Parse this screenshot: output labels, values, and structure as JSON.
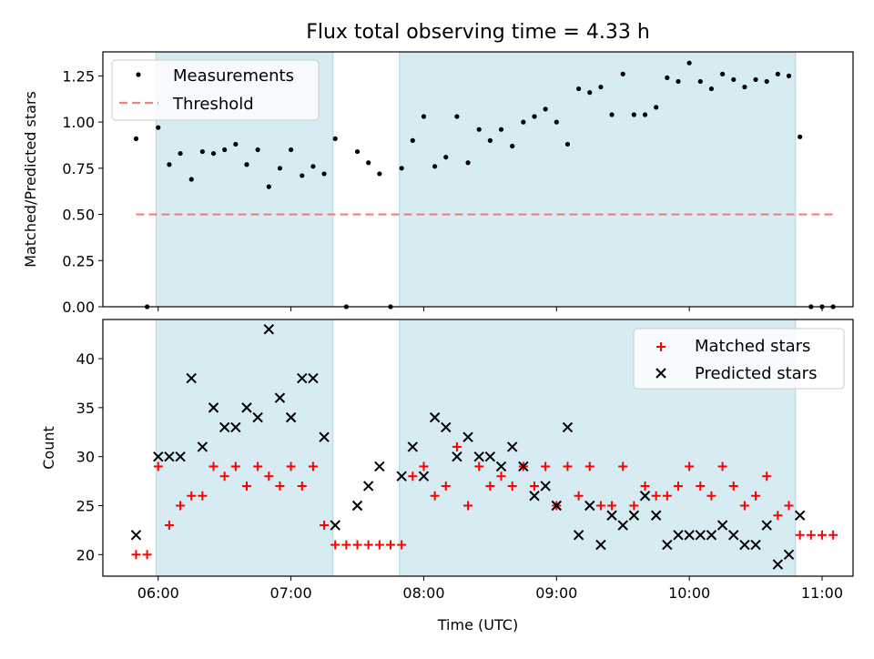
{
  "chart_data": [
    {
      "type": "scatter",
      "title": "Flux total observing time = 4.33 h",
      "xlabel": "",
      "ylabel": "Matched/Predicted stars",
      "ylim": [
        0,
        1.38
      ],
      "yticks": [
        "0.00",
        "0.25",
        "0.50",
        "0.75",
        "1.00",
        "1.25"
      ],
      "ytick_values": [
        0,
        0.25,
        0.5,
        0.75,
        1.0,
        1.25
      ],
      "legend_position": "top-left",
      "shaded_intervals": [
        [
          "05:59",
          "07:19"
        ],
        [
          "07:49",
          "10:48"
        ]
      ],
      "series": [
        {
          "name": "Measurements",
          "color": "#000000",
          "marker": "dot",
          "x": [
            "05:50",
            "05:55",
            "06:00",
            "06:05",
            "06:10",
            "06:15",
            "06:20",
            "06:25",
            "06:30",
            "06:35",
            "06:40",
            "06:45",
            "06:50",
            "06:55",
            "07:00",
            "07:05",
            "07:10",
            "07:15",
            "07:20",
            "07:25",
            "07:30",
            "07:35",
            "07:40",
            "07:45",
            "07:50",
            "07:55",
            "08:00",
            "08:05",
            "08:10",
            "08:15",
            "08:20",
            "08:25",
            "08:30",
            "08:35",
            "08:40",
            "08:45",
            "08:50",
            "08:55",
            "09:00",
            "09:05",
            "09:10",
            "09:15",
            "09:20",
            "09:25",
            "09:30",
            "09:35",
            "09:40",
            "09:45",
            "09:50",
            "09:55",
            "10:00",
            "10:05",
            "10:10",
            "10:15",
            "10:20",
            "10:25",
            "10:30",
            "10:35",
            "10:40",
            "10:45",
            "10:50",
            "10:55",
            "11:00",
            "11:05"
          ],
          "values": [
            0.91,
            0.0,
            0.97,
            0.77,
            0.83,
            0.69,
            0.84,
            0.83,
            0.85,
            0.88,
            0.77,
            0.85,
            0.65,
            0.75,
            0.85,
            0.71,
            0.76,
            0.72,
            0.91,
            0.0,
            0.84,
            0.78,
            0.72,
            0.0,
            0.75,
            0.9,
            1.03,
            0.76,
            0.81,
            1.03,
            0.78,
            0.96,
            0.9,
            0.96,
            0.87,
            1.0,
            1.03,
            1.07,
            1.0,
            0.88,
            1.18,
            1.16,
            1.19,
            1.04,
            1.26,
            1.04,
            1.04,
            1.08,
            1.24,
            1.22,
            1.32,
            1.22,
            1.18,
            1.26,
            1.23,
            1.19,
            1.23,
            1.22,
            1.26,
            1.25,
            0.92,
            0.0,
            0.0,
            0.0
          ]
        },
        {
          "name": "Threshold",
          "color": "#f08080",
          "style": "dashed",
          "x": [
            "05:50",
            "11:05"
          ],
          "values": [
            0.5,
            0.5
          ]
        }
      ]
    },
    {
      "type": "scatter",
      "title": "",
      "xlabel": "Time (UTC)",
      "ylabel": "Count",
      "ylim": [
        17.8,
        44
      ],
      "yticks": [
        "20",
        "25",
        "30",
        "35",
        "40"
      ],
      "ytick_values": [
        20,
        25,
        30,
        35,
        40
      ],
      "xticks": [
        "06:00",
        "07:00",
        "08:00",
        "09:00",
        "10:00",
        "11:00"
      ],
      "xlim": [
        "05:35",
        "11:14"
      ],
      "legend_position": "top-right",
      "shaded_intervals": [
        [
          "05:59",
          "07:19"
        ],
        [
          "07:49",
          "10:48"
        ]
      ],
      "series": [
        {
          "name": "Matched stars",
          "color": "#ff0000",
          "marker": "plus",
          "x": [
            "05:50",
            "05:55",
            "06:00",
            "06:05",
            "06:10",
            "06:15",
            "06:20",
            "06:25",
            "06:30",
            "06:35",
            "06:40",
            "06:45",
            "06:50",
            "06:55",
            "07:00",
            "07:05",
            "07:10",
            "07:15",
            "07:20",
            "07:25",
            "07:30",
            "07:35",
            "07:40",
            "07:45",
            "07:50",
            "07:55",
            "08:00",
            "08:05",
            "08:10",
            "08:15",
            "08:20",
            "08:25",
            "08:30",
            "08:35",
            "08:40",
            "08:45",
            "08:50",
            "08:55",
            "09:00",
            "09:05",
            "09:10",
            "09:15",
            "09:20",
            "09:25",
            "09:30",
            "09:35",
            "09:40",
            "09:45",
            "09:50",
            "09:55",
            "10:00",
            "10:05",
            "10:10",
            "10:15",
            "10:20",
            "10:25",
            "10:30",
            "10:35",
            "10:40",
            "10:45",
            "10:50",
            "10:55",
            "11:00",
            "11:05"
          ],
          "values": [
            20,
            20,
            29,
            23,
            25,
            26,
            26,
            29,
            28,
            29,
            27,
            29,
            28,
            27,
            29,
            27,
            29,
            23,
            21,
            21,
            21,
            21,
            21,
            21,
            21,
            28,
            29,
            26,
            27,
            31,
            25,
            29,
            27,
            28,
            27,
            29,
            27,
            29,
            25,
            29,
            26,
            29,
            25,
            25,
            29,
            25,
            27,
            26,
            26,
            27,
            29,
            27,
            26,
            29,
            27,
            25,
            26,
            28,
            24,
            25,
            22,
            22,
            22,
            22
          ]
        },
        {
          "name": "Predicted stars",
          "color": "#000000",
          "marker": "x",
          "x": [
            "05:50",
            "06:00",
            "06:05",
            "06:10",
            "06:15",
            "06:20",
            "06:25",
            "06:30",
            "06:35",
            "06:40",
            "06:45",
            "06:50",
            "06:55",
            "07:00",
            "07:05",
            "07:10",
            "07:15",
            "07:20",
            "07:30",
            "07:35",
            "07:40",
            "07:50",
            "07:55",
            "08:00",
            "08:05",
            "08:10",
            "08:15",
            "08:20",
            "08:25",
            "08:30",
            "08:35",
            "08:40",
            "08:45",
            "08:50",
            "08:55",
            "09:00",
            "09:05",
            "09:10",
            "09:15",
            "09:20",
            "09:25",
            "09:30",
            "09:35",
            "09:40",
            "09:45",
            "09:50",
            "09:55",
            "10:00",
            "10:05",
            "10:10",
            "10:15",
            "10:20",
            "10:25",
            "10:30",
            "10:35",
            "10:40",
            "10:45",
            "10:50"
          ],
          "values": [
            22,
            30,
            30,
            30,
            38,
            31,
            35,
            33,
            33,
            35,
            34,
            43,
            36,
            34,
            38,
            38,
            32,
            23,
            25,
            27,
            29,
            28,
            31,
            28,
            34,
            33,
            30,
            32,
            30,
            30,
            29,
            31,
            29,
            26,
            27,
            25,
            33,
            22,
            25,
            21,
            24,
            23,
            24,
            26,
            24,
            21,
            22,
            22,
            22,
            22,
            23,
            22,
            21,
            21,
            23,
            19,
            20,
            24
          ]
        }
      ]
    }
  ]
}
